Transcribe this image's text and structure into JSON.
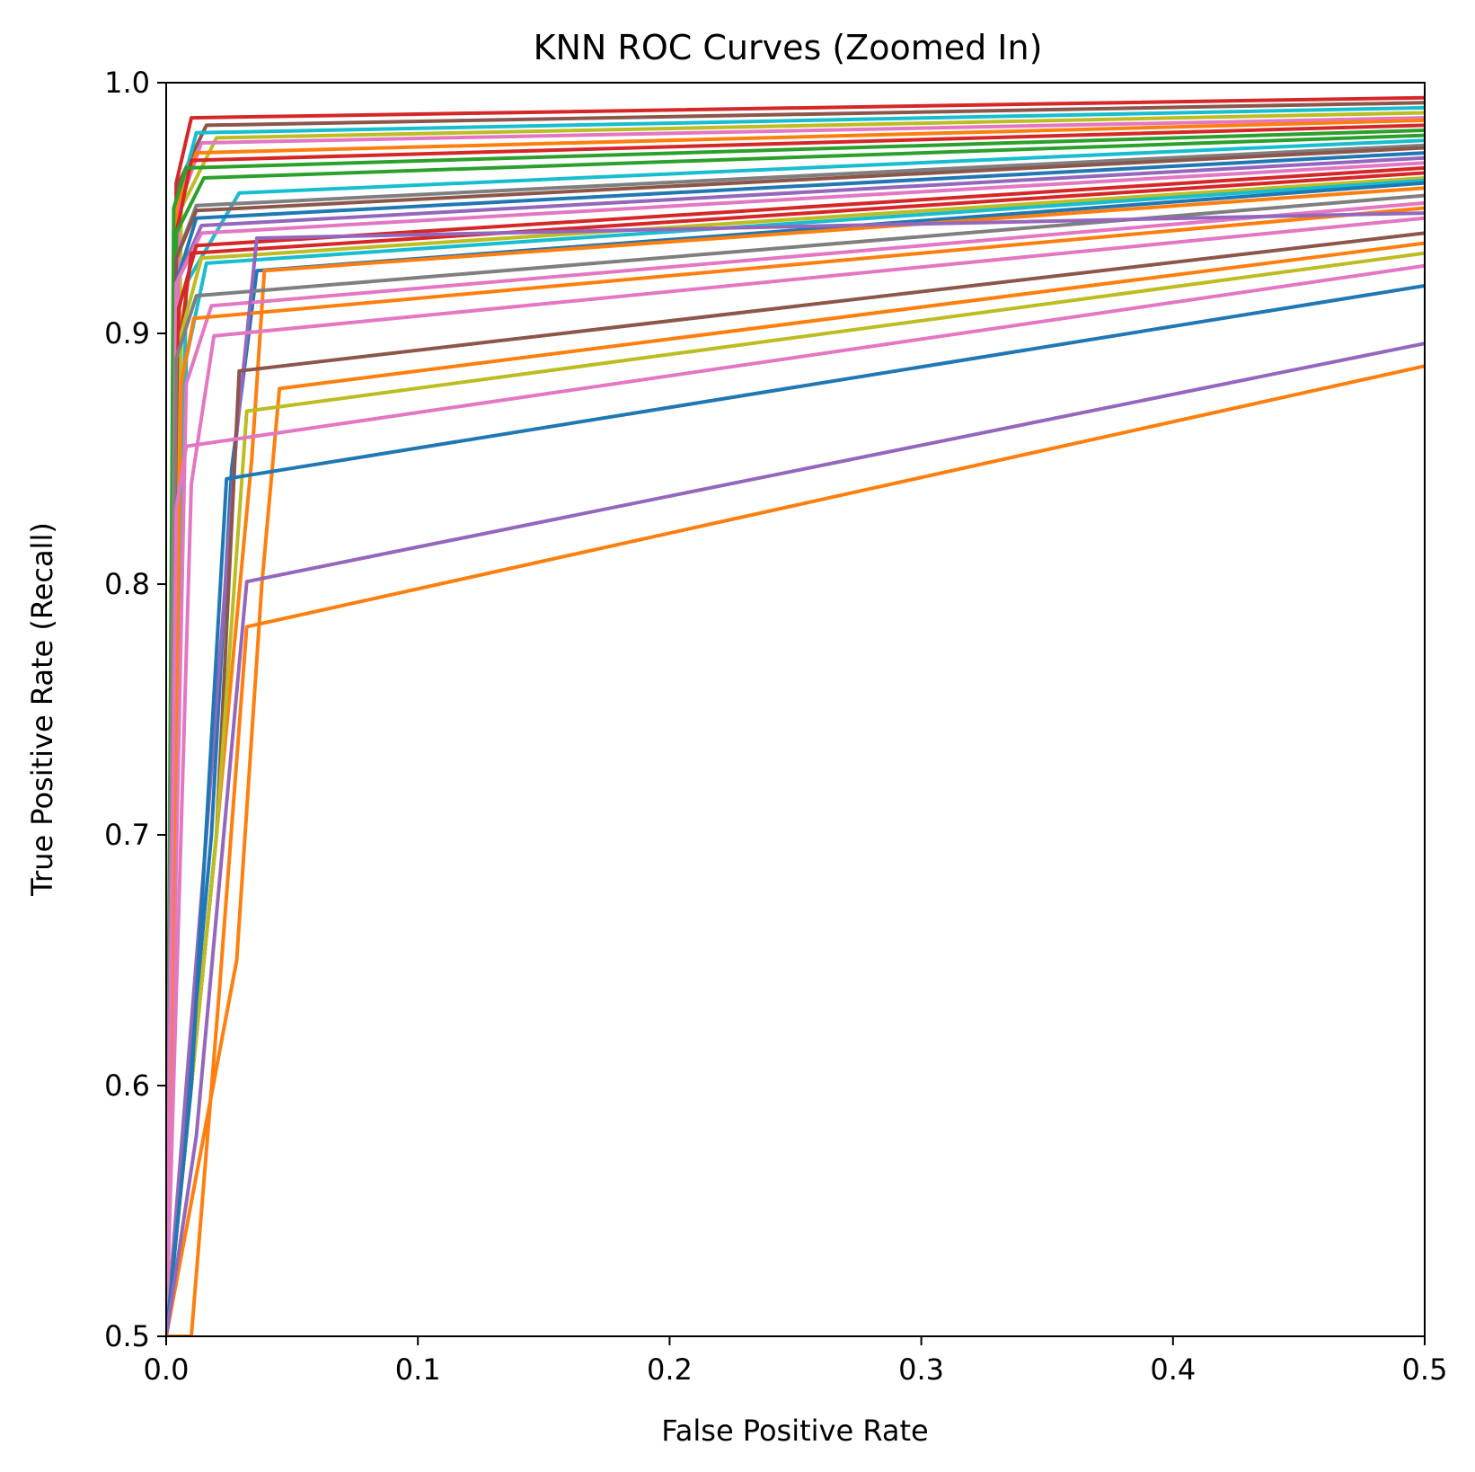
{
  "chart_data": {
    "type": "line",
    "title": "KNN ROC Curves (Zoomed In)",
    "xlabel": "False Positive Rate",
    "ylabel": "True Positive Rate (Recall)",
    "xlim": [
      0.0,
      0.5
    ],
    "ylim": [
      0.5,
      1.0
    ],
    "xticks": [
      0.0,
      0.1,
      0.2,
      0.3,
      0.4,
      0.5
    ],
    "xtick_labels": [
      "0.0",
      "0.1",
      "0.2",
      "0.3",
      "0.4",
      "0.5"
    ],
    "yticks": [
      0.5,
      0.6,
      0.7,
      0.8,
      0.9,
      1.0
    ],
    "ytick_labels": [
      "0.5",
      "0.6",
      "0.7",
      "0.8",
      "0.9",
      "1.0"
    ],
    "grid": false,
    "legend": "none",
    "series": [
      {
        "color": "#d62728",
        "points": [
          [
            0,
            0.5
          ],
          [
            0.004,
            0.96
          ],
          [
            0.01,
            0.986
          ],
          [
            0.5,
            0.994
          ]
        ]
      },
      {
        "color": "#8c564b",
        "points": [
          [
            0,
            0.5
          ],
          [
            0.005,
            0.96
          ],
          [
            0.016,
            0.983
          ],
          [
            0.5,
            0.992
          ]
        ]
      },
      {
        "color": "#17becf",
        "points": [
          [
            0,
            0.5
          ],
          [
            0.004,
            0.95
          ],
          [
            0.012,
            0.98
          ],
          [
            0.5,
            0.99
          ]
        ]
      },
      {
        "color": "#bcbd22",
        "points": [
          [
            0,
            0.5
          ],
          [
            0.006,
            0.95
          ],
          [
            0.02,
            0.978
          ],
          [
            0.5,
            0.988
          ]
        ]
      },
      {
        "color": "#e377c2",
        "points": [
          [
            0,
            0.5
          ],
          [
            0.005,
            0.95
          ],
          [
            0.014,
            0.976
          ],
          [
            0.5,
            0.986
          ]
        ]
      },
      {
        "color": "#ff7f0e",
        "points": [
          [
            0,
            0.5
          ],
          [
            0.004,
            0.95
          ],
          [
            0.012,
            0.972
          ],
          [
            0.5,
            0.985
          ]
        ]
      },
      {
        "color": "#d62728",
        "points": [
          [
            0,
            0.5
          ],
          [
            0.004,
            0.94
          ],
          [
            0.01,
            0.969
          ],
          [
            0.5,
            0.983
          ]
        ]
      },
      {
        "color": "#2ca02c",
        "points": [
          [
            0,
            0.5
          ],
          [
            0.003,
            0.95
          ],
          [
            0.008,
            0.966
          ],
          [
            0.5,
            0.981
          ]
        ]
      },
      {
        "color": "#2ca02c",
        "points": [
          [
            0,
            0.5
          ],
          [
            0.004,
            0.94
          ],
          [
            0.015,
            0.962
          ],
          [
            0.5,
            0.979
          ]
        ]
      },
      {
        "color": "#17becf",
        "points": [
          [
            0,
            0.5
          ],
          [
            0.008,
            0.92
          ],
          [
            0.029,
            0.956
          ],
          [
            0.5,
            0.977
          ]
        ]
      },
      {
        "color": "#7f7f7f",
        "points": [
          [
            0,
            0.5
          ],
          [
            0.004,
            0.93
          ],
          [
            0.012,
            0.951
          ],
          [
            0.5,
            0.975
          ]
        ]
      },
      {
        "color": "#8c564b",
        "points": [
          [
            0,
            0.5
          ],
          [
            0.004,
            0.93
          ],
          [
            0.012,
            0.949
          ],
          [
            0.5,
            0.974
          ]
        ]
      },
      {
        "color": "#1f77b4",
        "points": [
          [
            0,
            0.5
          ],
          [
            0.004,
            0.92
          ],
          [
            0.012,
            0.946
          ],
          [
            0.5,
            0.972
          ]
        ]
      },
      {
        "color": "#9467bd",
        "points": [
          [
            0,
            0.5
          ],
          [
            0.004,
            0.92
          ],
          [
            0.014,
            0.943
          ],
          [
            0.5,
            0.97
          ]
        ]
      },
      {
        "color": "#e377c2",
        "points": [
          [
            0,
            0.5
          ],
          [
            0.004,
            0.92
          ],
          [
            0.014,
            0.94
          ],
          [
            0.5,
            0.968
          ]
        ]
      },
      {
        "color": "#d62728",
        "points": [
          [
            0,
            0.5
          ],
          [
            0.005,
            0.91
          ],
          [
            0.012,
            0.935
          ],
          [
            0.5,
            0.966
          ]
        ]
      },
      {
        "color": "#d62728",
        "points": [
          [
            0,
            0.5
          ],
          [
            0.006,
            0.9
          ],
          [
            0.01,
            0.932
          ],
          [
            0.5,
            0.964
          ]
        ]
      },
      {
        "color": "#bcbd22",
        "points": [
          [
            0,
            0.5
          ],
          [
            0.006,
            0.9
          ],
          [
            0.014,
            0.93
          ],
          [
            0.5,
            0.962
          ]
        ]
      },
      {
        "color": "#17becf",
        "points": [
          [
            0,
            0.5
          ],
          [
            0.008,
            0.89
          ],
          [
            0.016,
            0.928
          ],
          [
            0.5,
            0.961
          ]
        ]
      },
      {
        "color": "#1f77b4",
        "points": [
          [
            0,
            0.5
          ],
          [
            0.018,
            0.7
          ],
          [
            0.026,
            0.846
          ],
          [
            0.036,
            0.925
          ],
          [
            0.5,
            0.96
          ]
        ]
      },
      {
        "color": "#ff7f0e",
        "points": [
          [
            0,
            0.5
          ],
          [
            0.02,
            0.7
          ],
          [
            0.034,
            0.85
          ],
          [
            0.039,
            0.925
          ],
          [
            0.5,
            0.958
          ]
        ]
      },
      {
        "color": "#7f7f7f",
        "points": [
          [
            0,
            0.5
          ],
          [
            0.004,
            0.89
          ],
          [
            0.012,
            0.915
          ],
          [
            0.5,
            0.955
          ]
        ]
      },
      {
        "color": "#e377c2",
        "points": [
          [
            0,
            0.5
          ],
          [
            0.008,
            0.88
          ],
          [
            0.018,
            0.911
          ],
          [
            0.5,
            0.952
          ]
        ]
      },
      {
        "color": "#ff7f0e",
        "points": [
          [
            0,
            0.5
          ],
          [
            0.006,
            0.88
          ],
          [
            0.011,
            0.906
          ],
          [
            0.5,
            0.95
          ]
        ]
      },
      {
        "color": "#9467bd",
        "points": [
          [
            0,
            0.5
          ],
          [
            0.016,
            0.7
          ],
          [
            0.028,
            0.86
          ],
          [
            0.036,
            0.938
          ],
          [
            0.5,
            0.948
          ]
        ]
      },
      {
        "color": "#e377c2",
        "points": [
          [
            0,
            0.5
          ],
          [
            0.01,
            0.84
          ],
          [
            0.019,
            0.899
          ],
          [
            0.5,
            0.946
          ]
        ]
      },
      {
        "color": "#8c564b",
        "points": [
          [
            0,
            0.5
          ],
          [
            0.02,
            0.7
          ],
          [
            0.029,
            0.885
          ],
          [
            0.5,
            0.94
          ]
        ]
      },
      {
        "color": "#ff7f0e",
        "points": [
          [
            0,
            0.5
          ],
          [
            0.028,
            0.65
          ],
          [
            0.038,
            0.8
          ],
          [
            0.045,
            0.878
          ],
          [
            0.5,
            0.936
          ]
        ]
      },
      {
        "color": "#bcbd22",
        "points": [
          [
            0,
            0.5
          ],
          [
            0.02,
            0.7
          ],
          [
            0.032,
            0.869
          ],
          [
            0.5,
            0.932
          ]
        ]
      },
      {
        "color": "#e377c2",
        "points": [
          [
            0,
            0.5
          ],
          [
            0.004,
            0.83
          ],
          [
            0.008,
            0.855
          ],
          [
            0.5,
            0.927
          ]
        ]
      },
      {
        "color": "#1f77b4",
        "points": [
          [
            0,
            0.5
          ],
          [
            0.01,
            0.6
          ],
          [
            0.024,
            0.842
          ],
          [
            0.5,
            0.919
          ]
        ]
      },
      {
        "color": "#9467bd",
        "points": [
          [
            0,
            0.5
          ],
          [
            0.012,
            0.58
          ],
          [
            0.032,
            0.801
          ],
          [
            0.5,
            0.896
          ]
        ]
      },
      {
        "color": "#ff7f0e",
        "points": [
          [
            0,
            0.5
          ],
          [
            0.01,
            0.5
          ],
          [
            0.021,
            0.636
          ],
          [
            0.032,
            0.783
          ],
          [
            0.5,
            0.887
          ]
        ]
      }
    ]
  }
}
